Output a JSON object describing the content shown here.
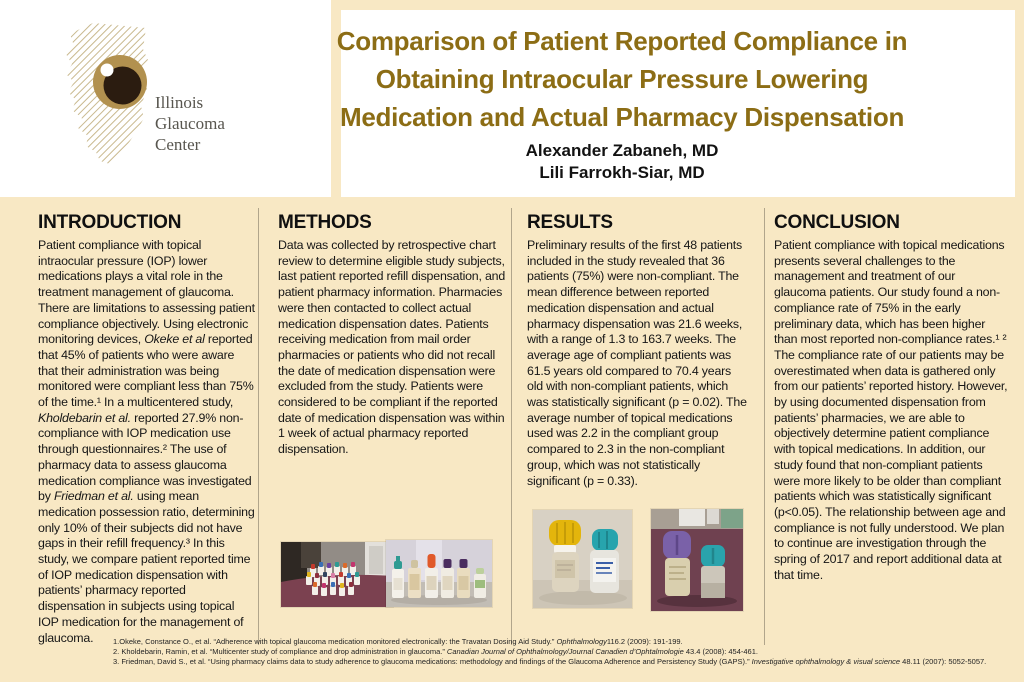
{
  "poster": {
    "colors": {
      "background_cream": "#f8e8c4",
      "header_white": "#ffffff",
      "title_gold": "#8c6d15",
      "logo_tan": "#b2914f",
      "logo_pupil_brown": "#2b1c10",
      "divider_gray": "#766e5c"
    },
    "logo": {
      "lines": [
        "Illinois",
        "Glaucoma",
        "Center"
      ]
    },
    "title_lines": [
      "Comparison of Patient Reported Compliance in",
      "Obtaining Intraocular Pressure Lowering",
      "Medication and Actual Pharmacy Dispensation"
    ],
    "authors": [
      "Alexander Zabaneh, MD",
      "Lili Farrokh-Siar, MD"
    ],
    "sections": {
      "introduction": {
        "heading": "INTRODUCTION",
        "segments": [
          {
            "t": "Patient compliance with topical intraocular pressure (IOP) lower medications plays a vital role in the treatment management of glaucoma. There are limitations to assessing patient compliance objectively. Using electronic monitoring devices, "
          },
          {
            "t": "Okeke et al",
            "i": true
          },
          {
            "t": " reported that 45% of patients who were aware that their administration was being monitored were compliant less than 75% of the time.¹ In a multicentered study, "
          },
          {
            "t": "Kholdebarin et al.",
            "i": true
          },
          {
            "t": " reported 27.9% non-compliance with IOP medication use through questionnaires.² The use of pharmacy data to assess glaucoma medication compliance was investigated by "
          },
          {
            "t": "Friedman et al.",
            "i": true
          },
          {
            "t": " using mean medication possession ratio, determining only 10% of their subjects did not have gaps in their refill frequency.³ In this study, we compare patient reported time of IOP medication dispensation with patients’ pharmacy reported dispensation in subjects using topical IOP medication for the management of glaucoma."
          }
        ]
      },
      "methods": {
        "heading": "METHODS",
        "segments": [
          {
            "t": "Data was collected by retrospective chart review to determine eligible study subjects, last patient reported refill dispensation, and patient pharmacy information. Pharmacies were then contacted to collect actual medication dispensation dates. Patients receiving medication from mail order pharmacies or patients who did not recall the date of medication dispensation were excluded from the study. Patients were considered to be compliant if the reported date of medication dispensation was within 1 week of actual pharmacy reported dispensation."
          }
        ]
      },
      "results": {
        "heading": "RESULTS",
        "segments": [
          {
            "t": "Preliminary results of the first 48 patients included in the study revealed that 36 patients (75%) were non-compliant. The mean difference between reported medication dispensation and actual pharmacy dispensation was 21.6 weeks, with a range of 1.3 to 163.7 weeks. The average age of compliant patients was 61.5 years old compared to 70.4 years old with non-compliant patients, which was statistically significant (p = 0.02). The average number of topical medications used was 2.2 in the compliant group compared to 2.3 in the non-compliant group, which was not statistically significant (p = 0.33)."
          }
        ]
      },
      "conclusion": {
        "heading": "CONCLUSION",
        "segments": [
          {
            "t": "Patient compliance with topical medications presents several challenges to the management and treatment of our glaucoma patients. Our study found a non-compliance rate of 75% in the early preliminary data, which has been higher than most reported non-compliance rates.¹ ² The compliance rate of our patients may be overestimated when data is gathered only from our patients’ reported history. However, by using documented dispensation from patients’ pharmacies, we are able to objectively determine patient compliance with topical medications. In addition, our study found that non-compliant patients were more likely to be older than compliant patients which was statistically significant (p<0.05). The relationship between age and compliance is not fully understood. We plan to continue are investigation through the spring of 2017 and report additional data at that time."
          }
        ]
      }
    },
    "photos": [
      {
        "alt": "Collection of many small eye drop bottles with colorful caps on a maroon table"
      },
      {
        "alt": "Row of six eye drop bottles with teal, beige, orange, purple and green caps"
      },
      {
        "alt": "Two eye drop bottles, one with yellow cap and one with teal cap"
      },
      {
        "alt": "Two eye drop bottles with purple and teal caps on a maroon desk"
      }
    ],
    "references": [
      {
        "segments": [
          {
            "t": "1.Okeke, Constance O., et al. “Adherence with topical glaucoma medication monitored electronically: the Travatan Dosing Aid Study.” "
          },
          {
            "t": "Ophthalmology",
            "i": true
          },
          {
            "t": "116.2 (2009): 191-199."
          }
        ]
      },
      {
        "segments": [
          {
            "t": "2. Kholdebarin, Ramin, et al. “Multicenter study of compliance and drop administration in glaucoma.” "
          },
          {
            "t": "Canadian Journal of Ophthalmology/Journal Canadien d’Ophtalmologie",
            "i": true
          },
          {
            "t": " 43.4 (2008): 454-461."
          }
        ]
      },
      {
        "segments": [
          {
            "t": "3. Friedman, David S., et al. “Using pharmacy claims data to study adherence to glaucoma medications: methodology and findings of the Glaucoma Adherence and Persistency Study (GAPS).” "
          },
          {
            "t": "Investigative ophthalmology & visual science",
            "i": true
          },
          {
            "t": " 48.11 (2007): 5052-5057."
          }
        ]
      }
    ]
  }
}
